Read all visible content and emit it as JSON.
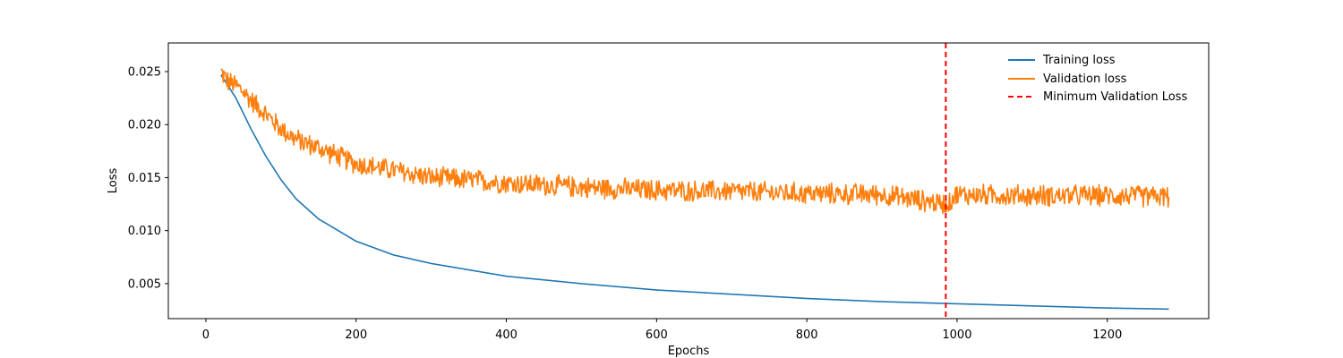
{
  "chart_data": {
    "type": "line",
    "title": "",
    "xlabel": "Epochs",
    "ylabel": "Loss",
    "xlim": [
      -50,
      1335
    ],
    "ylim": [
      0.0017,
      0.0277
    ],
    "xticks": [
      0,
      200,
      400,
      600,
      800,
      1000,
      1200
    ],
    "xtick_labels": [
      "0",
      "200",
      "400",
      "600",
      "800",
      "1000",
      "1200"
    ],
    "yticks": [
      0.005,
      0.01,
      0.015,
      0.02,
      0.025
    ],
    "ytick_labels": [
      "0.005",
      "0.010",
      "0.015",
      "0.020",
      "0.025"
    ],
    "grid": false,
    "legend": {
      "position": "top-right",
      "frame": false
    },
    "series": [
      {
        "name": "Training loss",
        "color": "#1f77b4",
        "style": "solid",
        "x": [
          20,
          40,
          60,
          80,
          100,
          120,
          150,
          200,
          250,
          300,
          400,
          500,
          600,
          700,
          800,
          900,
          1000,
          1100,
          1200,
          1282
        ],
        "y": [
          0.0247,
          0.0225,
          0.0196,
          0.017,
          0.0148,
          0.013,
          0.0111,
          0.009,
          0.0077,
          0.0069,
          0.0057,
          0.005,
          0.0044,
          0.004,
          0.0036,
          0.0033,
          0.0031,
          0.0029,
          0.0027,
          0.0026
        ]
      },
      {
        "name": "Validation loss",
        "color": "#ff7f0e",
        "style": "solid",
        "x": [
          20,
          25,
          30,
          40,
          50,
          60,
          80,
          100,
          120,
          150,
          200,
          250,
          300,
          350,
          400,
          500,
          600,
          700,
          800,
          900,
          985,
          1000,
          1100,
          1200,
          1282
        ],
        "y": [
          0.025,
          0.0245,
          0.024,
          0.0237,
          0.0231,
          0.0223,
          0.021,
          0.0196,
          0.0186,
          0.0178,
          0.0163,
          0.0157,
          0.015,
          0.0148,
          0.0145,
          0.0141,
          0.0138,
          0.0137,
          0.0135,
          0.0134,
          0.0125,
          0.0134,
          0.0133,
          0.0133,
          0.0132
        ],
        "noise": 0.0007
      }
    ],
    "vlines": [
      {
        "name": "Minimum Validation Loss",
        "x": 985,
        "color": "#ff0000",
        "style": "dashed"
      }
    ]
  }
}
